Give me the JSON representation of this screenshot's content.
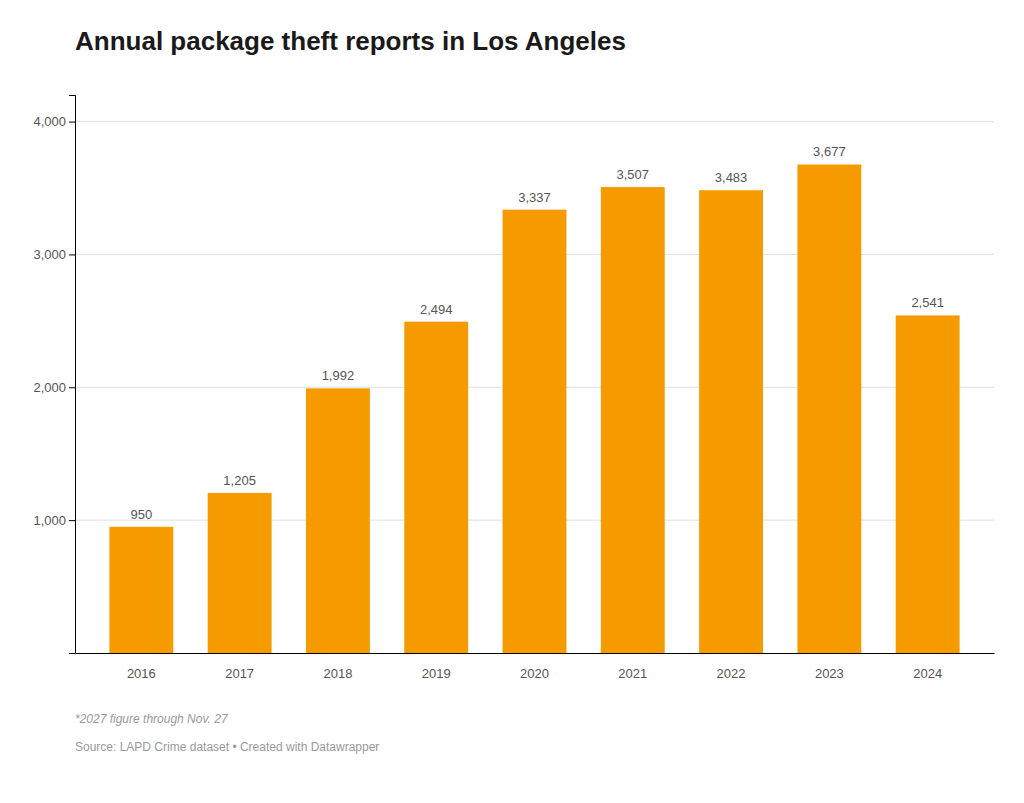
{
  "chart_data": {
    "type": "bar",
    "title": "Annual package theft reports in Los Angeles",
    "categories": [
      "2016",
      "2017",
      "2018",
      "2019",
      "2020",
      "2021",
      "2022",
      "2023",
      "2024"
    ],
    "values": [
      950,
      1205,
      1992,
      2494,
      3337,
      3507,
      3483,
      3677,
      2541
    ],
    "value_labels": [
      "950",
      "1,205",
      "1,992",
      "2,494",
      "3,337",
      "3,507",
      "3,483",
      "3,677",
      "2,541"
    ],
    "data_labels": true,
    "color": "#F59B00",
    "ylim": [
      0,
      4200
    ],
    "yticks": [
      {
        "value": 1000,
        "label": "1,000"
      },
      {
        "value": 2000,
        "label": "2,000"
      },
      {
        "value": 3000,
        "label": "3,000"
      },
      {
        "value": 4000,
        "label": "4,000"
      }
    ],
    "grid": true,
    "annotations": [
      "*2027 figure through Nov. 27",
      "Source: LAPD Crime dataset • Created with Datawrapper"
    ]
  }
}
